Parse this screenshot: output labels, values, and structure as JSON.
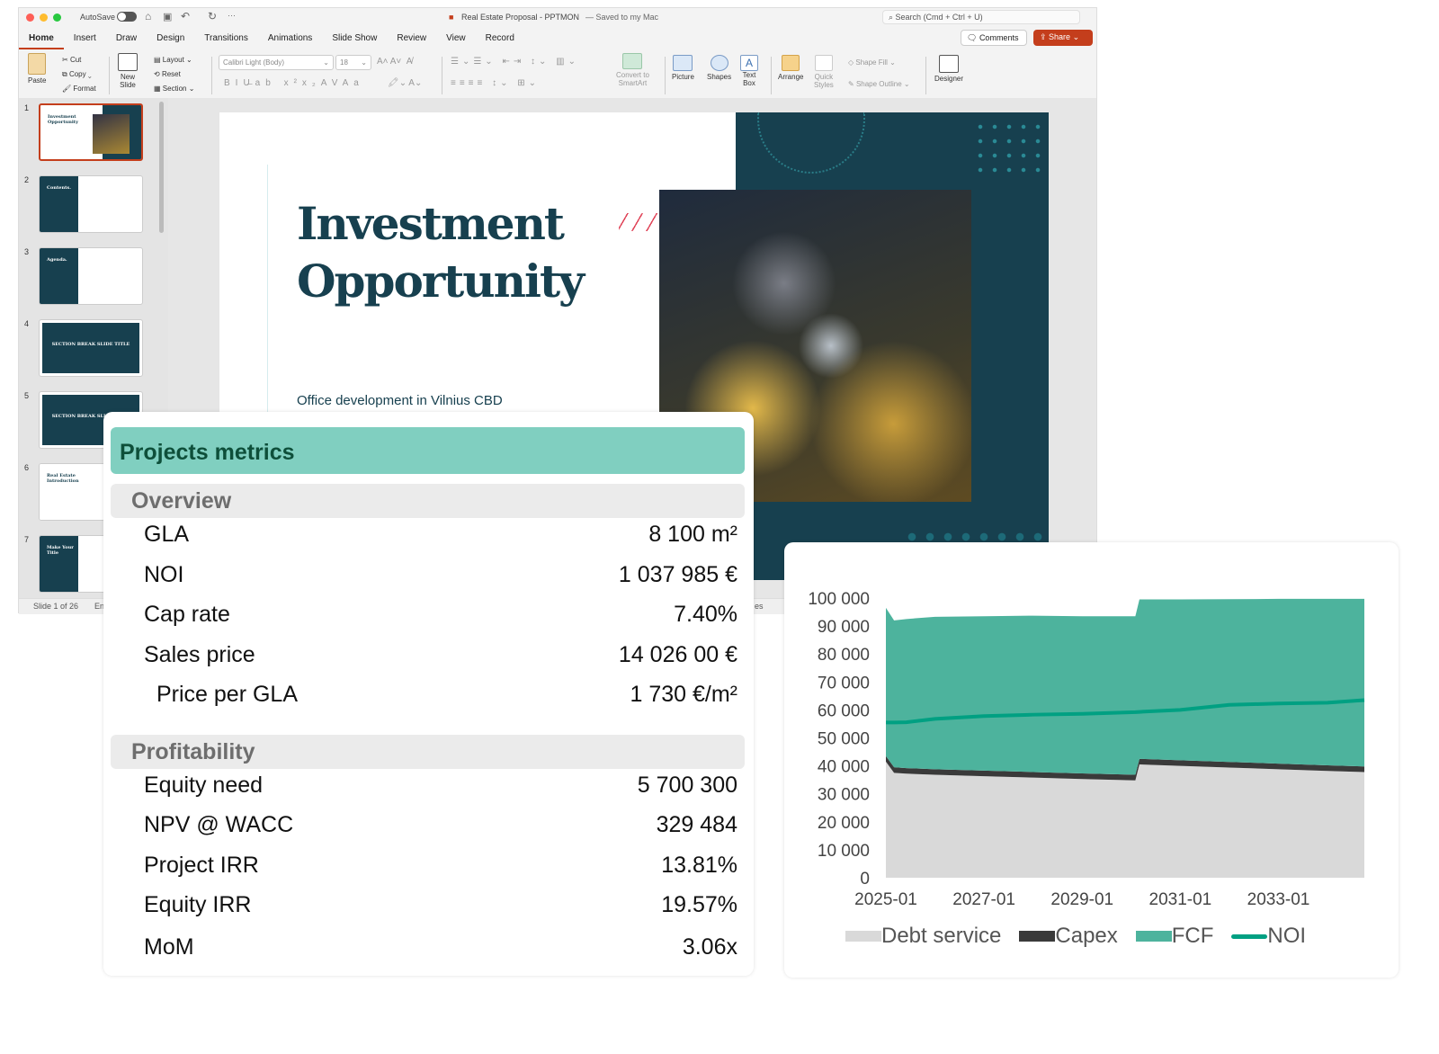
{
  "window": {
    "autosave": "AutoSave",
    "title": "Real Estate Proposal - PPTMON",
    "saved": "— Saved to my Mac",
    "search_placeholder": "Search (Cmd + Ctrl + U)"
  },
  "tabs": [
    "Home",
    "Insert",
    "Draw",
    "Design",
    "Transitions",
    "Animations",
    "Slide Show",
    "Review",
    "View",
    "Record"
  ],
  "actions": {
    "comments": "Comments",
    "share": "Share"
  },
  "ribbon": {
    "paste": "Paste",
    "cut": "Cut",
    "copy": "Copy",
    "format": "Format",
    "new_slide_1": "New",
    "new_slide_2": "Slide",
    "layout": "Layout",
    "reset": "Reset",
    "section": "Section",
    "font": "Calibri Light (Body)",
    "size": "18",
    "convert_1": "Convert to",
    "convert_2": "SmartArt",
    "picture": "Picture",
    "shapes": "Shapes",
    "textbox_1": "Text",
    "textbox_2": "Box",
    "arrange": "Arrange",
    "quick_1": "Quick",
    "quick_2": "Styles",
    "shape_fill": "Shape Fill",
    "shape_outline": "Shape Outline",
    "designer": "Designer"
  },
  "thumbnails": [
    {
      "n": "1",
      "title": "Investment Opportunity",
      "selected": true
    },
    {
      "n": "2",
      "title": "Contents."
    },
    {
      "n": "3",
      "title": "Agenda."
    },
    {
      "n": "4",
      "title": "SECTION BREAK SLIDE TITLE"
    },
    {
      "n": "5",
      "title": "SECTION BREAK SLIDE TITLE"
    },
    {
      "n": "6",
      "title": "Real Estate Introduction"
    },
    {
      "n": "7",
      "title": "Make Your Title"
    }
  ],
  "status": {
    "slide": "Slide 1 of 26",
    "lang": "En",
    "notes": "es"
  },
  "slide": {
    "title_1": "Investment",
    "title_2": "Opportunity",
    "subtitle": "Office development in Vilnius CBD",
    "colors": {
      "navy": "#17404f",
      "accent": "#e0465a"
    }
  },
  "metrics": {
    "title": "Projects metrics",
    "sections": [
      {
        "name": "Overview",
        "rows": [
          [
            "GLA",
            "8 100 m²"
          ],
          [
            "NOI",
            "1 037 985 €"
          ],
          [
            "Cap rate",
            "7.40%"
          ],
          [
            "Sales price",
            "14 026 00 €"
          ],
          [
            "Price per GLA",
            "1 730 €/m²"
          ]
        ]
      },
      {
        "name": "Profitability",
        "rows": [
          [
            "Equity need",
            "5 700 300"
          ],
          [
            "NPV @ WACC",
            "329 484"
          ],
          [
            "Project IRR",
            "13.81%"
          ],
          [
            "Equity IRR",
            "19.57%"
          ],
          [
            "MoM",
            "3.06x"
          ]
        ]
      }
    ],
    "colors": {
      "header": "#80cfc0",
      "header_text": "#0e4f3a"
    }
  },
  "chart_data": {
    "type": "area",
    "stacked": true,
    "x": [
      "2025-01",
      "2025-03",
      "2025-06",
      "2026-01",
      "2027-01",
      "2028-01",
      "2029-01",
      "2030-02",
      "2030-03",
      "2031-01",
      "2032-01",
      "2033-01",
      "2034-01",
      "2034-10"
    ],
    "series": [
      {
        "name": "Debt service",
        "kind": "area",
        "color": "#d9d9d9",
        "values": [
          41500,
          37500,
          37200,
          36800,
          36300,
          35800,
          35300,
          34800,
          40500,
          40000,
          39400,
          38800,
          38200,
          37800
        ]
      },
      {
        "name": "Capex",
        "kind": "area",
        "color": "#3a3a3a",
        "values": [
          2000,
          2000,
          2000,
          2000,
          2000,
          2000,
          2000,
          2000,
          2000,
          2000,
          2000,
          2000,
          2000,
          2000
        ]
      },
      {
        "name": "FCF",
        "kind": "area",
        "color": "#4db39d",
        "values": [
          53000,
          52500,
          53300,
          54500,
          55200,
          55900,
          56200,
          56700,
          57000,
          57500,
          58200,
          58900,
          59500,
          59900
        ]
      },
      {
        "name": "NOI",
        "kind": "line",
        "color": "#00a082",
        "values": [
          55500,
          55500,
          55600,
          56800,
          57800,
          58300,
          58600,
          59200,
          59300,
          60000,
          61800,
          62300,
          62600,
          63500
        ]
      }
    ],
    "yticks": [
      "0",
      "10 000",
      "20 000",
      "30 000",
      "40 000",
      "50 000",
      "60 000",
      "70 000",
      "80 000",
      "90 000",
      "100 000"
    ],
    "xticks": [
      "2025-01",
      "2027-01",
      "2029-01",
      "2031-01",
      "2033-01"
    ],
    "ylim": [
      0,
      100000
    ],
    "xlim": [
      "2025-01",
      "2034-10"
    ],
    "grid": false,
    "legend": "bottom"
  }
}
